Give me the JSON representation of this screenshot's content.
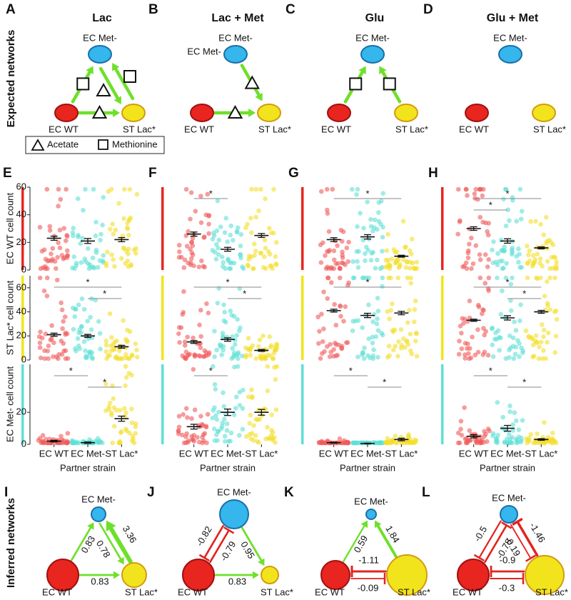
{
  "side_labels": {
    "expected": "Expected networks",
    "inferred": "Inferred networks"
  },
  "legend": {
    "acetate": "Acetate",
    "methionine": "Methionine"
  },
  "strains": [
    "EC WT",
    "EC Met-",
    "ST Lac*"
  ],
  "expected_networks": [
    {
      "letter": "A",
      "title": "Lac",
      "edges": [
        {
          "from": 0,
          "to": 1,
          "metabolite": "methionine"
        },
        {
          "from": 1,
          "to": 2,
          "metabolite": "acetate"
        },
        {
          "from": 2,
          "to": 1,
          "metabolite": "methionine"
        },
        {
          "from": 0,
          "to": 2,
          "metabolite": "acetate"
        }
      ]
    },
    {
      "letter": "B",
      "title": "Lac + Met",
      "extra_label": "EC Met-",
      "edges": [
        {
          "from": 1,
          "to": 2,
          "metabolite": "acetate"
        },
        {
          "from": 0,
          "to": 2,
          "metabolite": "acetate"
        }
      ]
    },
    {
      "letter": "C",
      "title": "Glu",
      "edges": [
        {
          "from": 0,
          "to": 1,
          "metabolite": "methionine"
        },
        {
          "from": 2,
          "to": 1,
          "metabolite": "methionine"
        }
      ]
    },
    {
      "letter": "D",
      "title": "Glu + Met",
      "edges": []
    }
  ],
  "strip_panels": {
    "x_label": "Partner strain",
    "row_labels": [
      "EC WT cell count",
      "ST Lac* cell count",
      "EC Met- cell count"
    ],
    "rows": [
      {
        "ylim": [
          0,
          60
        ],
        "yticks": [
          0,
          20,
          40,
          60
        ]
      },
      {
        "ylim": [
          0,
          70
        ],
        "yticks": [
          0,
          20,
          40,
          60
        ]
      },
      {
        "ylim": [
          0,
          50
        ],
        "yticks": [
          0,
          20
        ]
      }
    ],
    "panels": [
      {
        "letter": "E",
        "means": [
          [
            23,
            21,
            22
          ],
          [
            21,
            20,
            11
          ],
          [
            2,
            1,
            16
          ]
        ],
        "errors": [
          [
            1.5,
            1.8,
            1.5
          ],
          [
            1.3,
            1.3,
            1.2
          ],
          [
            0.5,
            0.4,
            1.6
          ]
        ],
        "sig": [
          [],
          [
            {
              "pair": [
                0,
                2
              ],
              "label": "*"
            },
            {
              "pair": [
                1,
                2
              ],
              "label": "*"
            }
          ],
          [
            {
              "pair": [
                0,
                1
              ],
              "label": "*"
            },
            {
              "pair": [
                1,
                2
              ],
              "label": "*"
            }
          ]
        ]
      },
      {
        "letter": "F",
        "means": [
          [
            26,
            15,
            25
          ],
          [
            15,
            17,
            8
          ],
          [
            11,
            20,
            20
          ]
        ],
        "errors": [
          [
            1.5,
            1.4,
            1.4
          ],
          [
            1.2,
            1.4,
            0.8
          ],
          [
            1.5,
            2,
            1.8
          ]
        ],
        "sig": [
          [
            {
              "pair": [
                0,
                1
              ],
              "label": "*"
            }
          ],
          [
            {
              "pair": [
                0,
                2
              ],
              "label": "*"
            },
            {
              "pair": [
                1,
                2
              ],
              "label": "*"
            }
          ],
          [
            {
              "pair": [
                0,
                1
              ],
              "label": "*"
            }
          ]
        ]
      },
      {
        "letter": "G",
        "means": [
          [
            22,
            24,
            10
          ],
          [
            41,
            37,
            39
          ],
          [
            1,
            0.5,
            3
          ]
        ],
        "errors": [
          [
            1.4,
            1.6,
            0.7
          ],
          [
            1.2,
            1.8,
            1.4
          ],
          [
            0.3,
            0.2,
            0.8
          ]
        ],
        "sig": [
          [
            {
              "pair": [
                0,
                2
              ],
              "label": "*"
            }
          ],
          [
            {
              "pair": [
                0,
                2
              ],
              "label": "*"
            }
          ],
          [
            {
              "pair": [
                0,
                1
              ],
              "label": "*"
            },
            {
              "pair": [
                1,
                2
              ],
              "label": "*"
            }
          ]
        ]
      },
      {
        "letter": "H",
        "means": [
          [
            30,
            21,
            16
          ],
          [
            33,
            35,
            40
          ],
          [
            5,
            10,
            3
          ]
        ],
        "errors": [
          [
            1.3,
            1.6,
            0.7
          ],
          [
            0.9,
            1.8,
            1.2
          ],
          [
            1,
            1.8,
            0.5
          ]
        ],
        "sig": [
          [
            {
              "pair": [
                0,
                2
              ],
              "label": "*"
            },
            {
              "pair": [
                0,
                1
              ],
              "label": "*"
            }
          ],
          [
            {
              "pair": [
                0,
                2
              ],
              "label": "*"
            },
            {
              "pair": [
                1,
                2
              ],
              "label": "*"
            }
          ],
          [
            {
              "pair": [
                0,
                1
              ],
              "label": "*"
            },
            {
              "pair": [
                1,
                2
              ],
              "label": "*"
            }
          ]
        ]
      }
    ]
  },
  "inferred_networks": [
    {
      "letter": "I",
      "edges": [
        {
          "from": 0,
          "to": 1,
          "weight": 0.83
        },
        {
          "from": 2,
          "to": 1,
          "weight": 3.36
        },
        {
          "from": 1,
          "to": 2,
          "weight": 0.78
        },
        {
          "from": 0,
          "to": 2,
          "weight": 0.83
        }
      ]
    },
    {
      "letter": "J",
      "edges": [
        {
          "from": 1,
          "to": 0,
          "weight": -0.82
        },
        {
          "from": 0,
          "to": 1,
          "weight": -0.79
        },
        {
          "from": 1,
          "to": 2,
          "weight": 0.95
        },
        {
          "from": 0,
          "to": 2,
          "weight": 0.83
        }
      ]
    },
    {
      "letter": "K",
      "edges": [
        {
          "from": 0,
          "to": 1,
          "weight": 0.59
        },
        {
          "from": 2,
          "to": 1,
          "weight": 1.84
        },
        {
          "from": 2,
          "to": 0,
          "weight": -1.11
        },
        {
          "from": 0,
          "to": 2,
          "weight": -0.09
        }
      ]
    },
    {
      "letter": "L",
      "edges": [
        {
          "from": 1,
          "to": 0,
          "weight": -0.5
        },
        {
          "from": 0,
          "to": 1,
          "weight": -0.78
        },
        {
          "from": 2,
          "to": 1,
          "weight": -1.46
        },
        {
          "from": 1,
          "to": 2,
          "weight": -0.19
        },
        {
          "from": 2,
          "to": 0,
          "weight": -0.9
        },
        {
          "from": 0,
          "to": 2,
          "weight": -0.3
        }
      ]
    }
  ]
}
